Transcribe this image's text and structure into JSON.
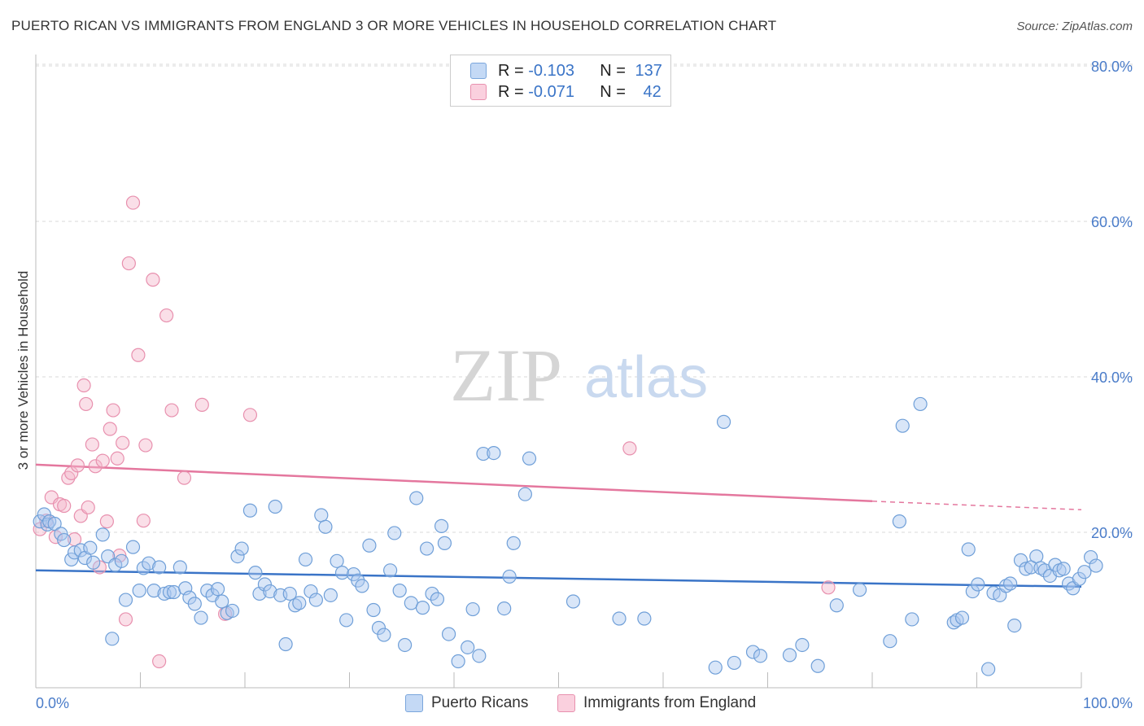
{
  "title": "PUERTO RICAN VS IMMIGRANTS FROM ENGLAND 3 OR MORE VEHICLES IN HOUSEHOLD CORRELATION CHART",
  "source": "Source: ZipAtlas.com",
  "watermark": {
    "zip": "ZIP",
    "atlas": "atlas"
  },
  "colors": {
    "blue_fill": "#aac8f0",
    "blue_stroke": "#6f9fd8",
    "blue_line": "#3a74c7",
    "pink_fill": "#f5b8cb",
    "pink_stroke": "#e890ae",
    "pink_line": "#e4779e",
    "tick_text": "#4a7cc9"
  },
  "legend": {
    "rows": [
      {
        "r_label": "R = ",
        "r_value": "-0.103",
        "n_label": "N = ",
        "n_value": "137"
      },
      {
        "r_label": "R = ",
        "r_value": "-0.071",
        "n_label": "N = ",
        "n_value": "42"
      }
    ]
  },
  "bottom_legend": {
    "blue": "Puerto Ricans",
    "pink": "Immigrants from England"
  },
  "chart_data": {
    "type": "scatter",
    "title": "PUERTO RICAN VS IMMIGRANTS FROM ENGLAND 3 OR MORE VEHICLES IN HOUSEHOLD CORRELATION CHART",
    "xlabel": "",
    "ylabel": "3 or more Vehicles in Household",
    "xlim": [
      0,
      100
    ],
    "ylim": [
      0,
      80
    ],
    "x_tick_labels": [
      "0.0%",
      "100.0%"
    ],
    "y_ticks": [
      20,
      40,
      60,
      80
    ],
    "y_tick_labels": [
      "20.0%",
      "40.0%",
      "60.0%",
      "80.0%"
    ],
    "grid": true,
    "series": [
      {
        "name": "Puerto Ricans",
        "trend": {
          "x": [
            0,
            100
          ],
          "y": [
            15.1,
            13.0
          ]
        },
        "points": [
          [
            0.4,
            21.4
          ],
          [
            0.8,
            22.3
          ],
          [
            1.1,
            21.0
          ],
          [
            1.3,
            21.4
          ],
          [
            1.8,
            21.1
          ],
          [
            2.4,
            19.8
          ],
          [
            2.7,
            19.0
          ],
          [
            3.4,
            16.5
          ],
          [
            3.7,
            17.4
          ],
          [
            4.3,
            17.7
          ],
          [
            4.7,
            16.7
          ],
          [
            5.2,
            18.0
          ],
          [
            5.5,
            16.1
          ],
          [
            6.4,
            19.7
          ],
          [
            6.9,
            16.9
          ],
          [
            7.3,
            6.3
          ],
          [
            7.6,
            15.8
          ],
          [
            8.2,
            16.3
          ],
          [
            8.6,
            11.3
          ],
          [
            9.3,
            18.1
          ],
          [
            9.9,
            12.5
          ],
          [
            10.3,
            15.4
          ],
          [
            10.8,
            16.0
          ],
          [
            11.3,
            12.5
          ],
          [
            11.8,
            15.5
          ],
          [
            12.3,
            12.1
          ],
          [
            12.8,
            12.3
          ],
          [
            13.2,
            12.3
          ],
          [
            13.8,
            15.5
          ],
          [
            14.3,
            12.8
          ],
          [
            14.7,
            11.6
          ],
          [
            15.2,
            10.8
          ],
          [
            15.8,
            9.0
          ],
          [
            16.4,
            12.5
          ],
          [
            16.9,
            11.9
          ],
          [
            17.4,
            12.7
          ],
          [
            17.8,
            11.1
          ],
          [
            18.3,
            9.6
          ],
          [
            18.8,
            9.9
          ],
          [
            19.3,
            16.9
          ],
          [
            19.7,
            17.9
          ],
          [
            20.5,
            22.8
          ],
          [
            21.0,
            14.8
          ],
          [
            21.4,
            12.1
          ],
          [
            21.9,
            13.3
          ],
          [
            22.4,
            12.4
          ],
          [
            22.9,
            23.3
          ],
          [
            23.4,
            11.9
          ],
          [
            23.9,
            5.6
          ],
          [
            24.3,
            12.1
          ],
          [
            24.8,
            10.6
          ],
          [
            25.2,
            10.9
          ],
          [
            25.8,
            16.5
          ],
          [
            26.3,
            12.4
          ],
          [
            26.8,
            11.3
          ],
          [
            27.3,
            22.2
          ],
          [
            27.7,
            20.7
          ],
          [
            28.2,
            11.9
          ],
          [
            28.8,
            16.3
          ],
          [
            29.3,
            14.8
          ],
          [
            29.7,
            8.7
          ],
          [
            30.4,
            14.6
          ],
          [
            30.8,
            13.8
          ],
          [
            31.2,
            13.1
          ],
          [
            31.9,
            18.3
          ],
          [
            32.3,
            10.0
          ],
          [
            32.8,
            7.7
          ],
          [
            33.3,
            6.8
          ],
          [
            33.9,
            15.1
          ],
          [
            34.3,
            19.9
          ],
          [
            34.8,
            12.5
          ],
          [
            35.3,
            5.5
          ],
          [
            35.9,
            10.9
          ],
          [
            36.4,
            24.4
          ],
          [
            37.0,
            10.3
          ],
          [
            37.4,
            17.9
          ],
          [
            37.9,
            12.1
          ],
          [
            38.4,
            11.4
          ],
          [
            38.8,
            20.8
          ],
          [
            39.1,
            18.6
          ],
          [
            39.5,
            6.9
          ],
          [
            40.4,
            3.4
          ],
          [
            41.3,
            5.2
          ],
          [
            41.8,
            10.1
          ],
          [
            42.4,
            4.1
          ],
          [
            42.8,
            30.1
          ],
          [
            43.8,
            30.2
          ],
          [
            44.8,
            10.2
          ],
          [
            45.3,
            14.3
          ],
          [
            45.7,
            18.6
          ],
          [
            46.8,
            24.9
          ],
          [
            47.2,
            29.5
          ],
          [
            51.4,
            11.1
          ],
          [
            55.8,
            8.9
          ],
          [
            58.2,
            8.9
          ],
          [
            65.0,
            2.6
          ],
          [
            65.8,
            34.2
          ],
          [
            66.8,
            3.2
          ],
          [
            68.6,
            4.6
          ],
          [
            69.3,
            4.1
          ],
          [
            72.1,
            4.2
          ],
          [
            73.3,
            5.5
          ],
          [
            74.8,
            2.8
          ],
          [
            76.6,
            10.6
          ],
          [
            78.8,
            12.6
          ],
          [
            81.7,
            6.0
          ],
          [
            82.6,
            21.4
          ],
          [
            82.9,
            33.7
          ],
          [
            83.8,
            8.8
          ],
          [
            84.6,
            36.5
          ],
          [
            87.8,
            8.4
          ],
          [
            88.1,
            8.7
          ],
          [
            88.6,
            9.0
          ],
          [
            89.2,
            17.8
          ],
          [
            89.6,
            12.4
          ],
          [
            90.1,
            13.3
          ],
          [
            91.1,
            2.4
          ],
          [
            91.6,
            12.2
          ],
          [
            92.2,
            11.9
          ],
          [
            92.8,
            13.1
          ],
          [
            93.2,
            13.4
          ],
          [
            93.6,
            8.0
          ],
          [
            94.2,
            16.4
          ],
          [
            94.7,
            15.3
          ],
          [
            95.2,
            15.5
          ],
          [
            95.7,
            16.9
          ],
          [
            96.1,
            15.4
          ],
          [
            96.5,
            15.1
          ],
          [
            97.0,
            14.4
          ],
          [
            97.5,
            15.8
          ],
          [
            97.9,
            15.1
          ],
          [
            98.3,
            15.3
          ],
          [
            98.8,
            13.4
          ],
          [
            99.2,
            12.8
          ],
          [
            99.8,
            14.0
          ],
          [
            100.3,
            14.9
          ],
          [
            100.9,
            16.8
          ],
          [
            101.4,
            15.7
          ]
        ]
      },
      {
        "name": "Immigrants from England",
        "trend": {
          "x": [
            0,
            80
          ],
          "y": [
            28.7,
            24.0
          ]
        },
        "trend_dashed": {
          "x": [
            80,
            100
          ],
          "y": [
            24.0,
            22.9
          ]
        },
        "points": [
          [
            0.4,
            20.4
          ],
          [
            1.0,
            21.5
          ],
          [
            1.5,
            24.5
          ],
          [
            1.9,
            19.4
          ],
          [
            2.3,
            23.6
          ],
          [
            2.7,
            23.4
          ],
          [
            3.1,
            27.0
          ],
          [
            3.4,
            27.6
          ],
          [
            3.7,
            19.1
          ],
          [
            4.0,
            28.6
          ],
          [
            4.3,
            22.1
          ],
          [
            4.6,
            38.9
          ],
          [
            4.8,
            36.5
          ],
          [
            5.0,
            23.2
          ],
          [
            5.4,
            31.3
          ],
          [
            5.7,
            28.5
          ],
          [
            6.1,
            15.5
          ],
          [
            6.4,
            29.2
          ],
          [
            6.8,
            21.4
          ],
          [
            7.1,
            33.3
          ],
          [
            7.4,
            35.7
          ],
          [
            7.8,
            29.5
          ],
          [
            8.0,
            17.0
          ],
          [
            8.3,
            31.5
          ],
          [
            8.6,
            8.8
          ],
          [
            8.9,
            54.6
          ],
          [
            9.3,
            62.4
          ],
          [
            9.8,
            42.8
          ],
          [
            10.3,
            21.5
          ],
          [
            10.5,
            31.2
          ],
          [
            11.2,
            52.5
          ],
          [
            11.8,
            3.4
          ],
          [
            12.5,
            47.9
          ],
          [
            13.0,
            35.7
          ],
          [
            14.2,
            27.0
          ],
          [
            15.9,
            36.4
          ],
          [
            18.1,
            9.5
          ],
          [
            20.5,
            35.1
          ],
          [
            56.8,
            30.8
          ],
          [
            75.8,
            12.9
          ]
        ]
      }
    ]
  }
}
